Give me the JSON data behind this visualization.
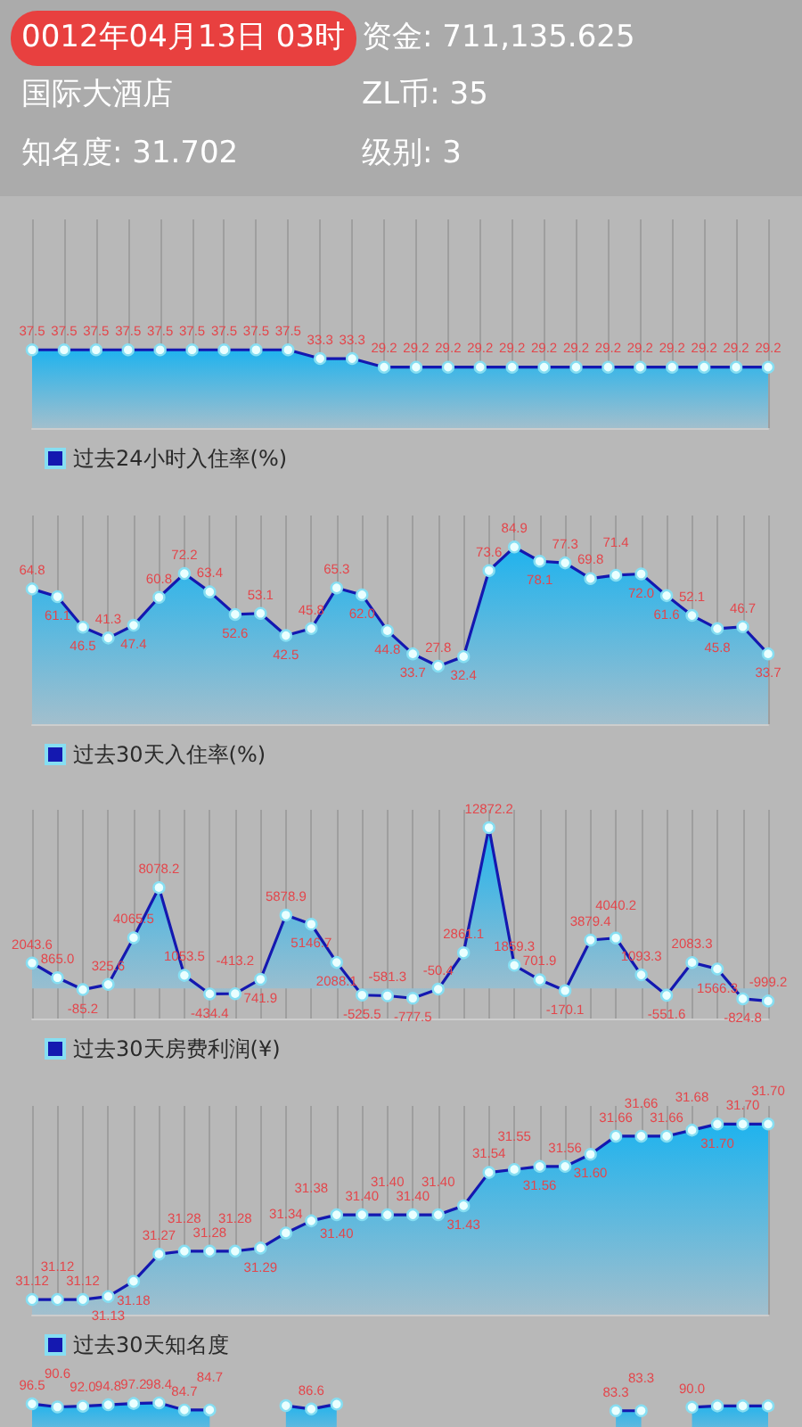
{
  "chart_data": [
    {
      "type": "other",
      "title": "0012年04月13日 03时",
      "annotations": [
        "资金: 711,135.625",
        "国际大酒店",
        "ZL币: 35",
        "知名度: 31.702",
        "级别: 3"
      ]
    },
    {
      "type": "area",
      "categories": [
        null,
        null,
        null,
        null,
        null,
        null,
        null,
        null,
        null,
        null,
        null,
        null,
        null,
        null,
        null,
        null,
        null,
        null,
        null,
        null,
        null,
        null,
        null,
        null
      ],
      "series": [
        {
          "name": "过去24小时入住率(%)",
          "color": "#1418b0",
          "values": [
            37.5,
            37.5,
            37.5,
            37.5,
            37.5,
            37.5,
            37.5,
            37.5,
            37.5,
            33.3,
            33.3,
            29.2,
            29.2,
            29.2,
            29.2,
            29.2,
            29.2,
            29.2,
            29.2,
            29.2,
            29.2,
            29.2,
            29.2,
            29.2
          ],
          "value_labels": [
            "37.5",
            "37.5",
            "37.5",
            "37.5",
            "37.5",
            "37.5",
            "37.5",
            "37.5",
            "37.5",
            "33.3",
            "33.3",
            "29.2",
            "29.2",
            "29.2",
            "29.2",
            "29.2",
            "29.2",
            "29.2",
            "29.2",
            "29.2",
            "29.2",
            "29.2",
            "29.2",
            "29.2"
          ]
        }
      ],
      "ylim": [
        0,
        100
      ],
      "grid": "x",
      "legend": "bottom left",
      "tick_labels": false,
      "marker": "circle"
    },
    {
      "type": "area",
      "categories": [
        null,
        null,
        null,
        null,
        null,
        null,
        null,
        null,
        null,
        null,
        null,
        null,
        null,
        null,
        null,
        null,
        null,
        null,
        null,
        null,
        null,
        null,
        null,
        null,
        null,
        null,
        null,
        null,
        null,
        null
      ],
      "series": [
        {
          "name": "过去30天入住率(%)",
          "color": "#1418b0",
          "values": [
            64.8,
            61.1,
            46.5,
            41.3,
            47.4,
            60.8,
            72.2,
            63.4,
            52.6,
            53.1,
            42.5,
            45.8,
            65.3,
            62.0,
            44.8,
            33.7,
            27.8,
            32.4,
            73.6,
            84.9,
            78.1,
            77.3,
            69.8,
            71.4,
            72.0,
            61.6,
            52.1,
            45.8,
            46.7,
            33.7
          ],
          "value_labels": [
            "64.8",
            "61.1",
            "46.5",
            "41.3",
            "47.4",
            "60.8",
            "72.2",
            "63.4",
            "52.6",
            "53.1",
            "42.5",
            "45.8",
            "65.3",
            "62.0",
            "44.8",
            "33.7",
            "27.8",
            "32.4",
            "73.6",
            "84.9",
            "78.1",
            "77.3",
            "69.8",
            "71.4",
            "72.0",
            "61.6",
            "52.1",
            "45.8",
            "46.7",
            "33.7"
          ]
        }
      ],
      "ylim": [
        0,
        100
      ],
      "grid": "x",
      "legend": "bottom left",
      "tick_labels": false,
      "marker": "circle"
    },
    {
      "type": "area",
      "categories": [
        null,
        null,
        null,
        null,
        null,
        null,
        null,
        null,
        null,
        null,
        null,
        null,
        null,
        null,
        null,
        null,
        null,
        null,
        null,
        null,
        null,
        null,
        null,
        null,
        null,
        null,
        null,
        null,
        null,
        null
      ],
      "series": [
        {
          "name": "过去30天房费利润(¥)",
          "color": "#1418b0",
          "values": [
            2043.6,
            865.0,
            -85.2,
            325.6,
            4065.5,
            8078.2,
            1053.5,
            -434.4,
            -413.2,
            741.9,
            5878.9,
            5146.7,
            2088.1,
            -525.5,
            -581.3,
            -777.5,
            -50.4,
            2861.1,
            12872.2,
            1859.3,
            701.9,
            -170.1,
            3879.4,
            4040.2,
            1093.3,
            -551.6,
            2083.3,
            1566.3,
            -824.8,
            -999.2
          ],
          "value_labels": [
            "2043.6",
            "865.0",
            "-85.2",
            "325.6",
            "4065.5",
            "8078.2",
            "1053.5",
            "-434.4",
            "-413.2",
            "741.9",
            "5878.9",
            "5146.7",
            "2088.1",
            "-525.5",
            "-581.3",
            "-777.5",
            "-50.4",
            "2861.1",
            "12872.2",
            "1859.3",
            "701.9",
            "-170.1",
            "3879.4",
            "4040.2",
            "1093.3",
            "-551.6",
            "2083.3",
            "1566.3",
            "-824.8",
            "-999.2"
          ]
        }
      ],
      "ylim": [
        -2400,
        14300
      ],
      "grid": "x",
      "legend": "bottom left",
      "tick_labels": false,
      "marker": "circle"
    },
    {
      "type": "area",
      "categories": [
        null,
        null,
        null,
        null,
        null,
        null,
        null,
        null,
        null,
        null,
        null,
        null,
        null,
        null,
        null,
        null,
        null,
        null,
        null,
        null,
        null,
        null,
        null,
        null,
        null,
        null,
        null,
        null,
        null,
        null
      ],
      "series": [
        {
          "name": "过去30天知名度",
          "color": "#1418b0",
          "values": [
            31.12,
            31.12,
            31.12,
            31.13,
            31.18,
            31.27,
            31.28,
            31.28,
            31.28,
            31.29,
            31.34,
            31.38,
            31.4,
            31.4,
            31.4,
            31.4,
            31.4,
            31.43,
            31.54,
            31.55,
            31.56,
            31.56,
            31.6,
            31.66,
            31.66,
            31.66,
            31.68,
            31.7,
            31.7,
            31.7
          ],
          "value_labels": [
            "31.12",
            "31.12",
            "31.12",
            "31.13",
            "31.18",
            "31.27",
            "31.28",
            "31.28",
            "31.28",
            "31.29",
            "31.34",
            "31.38",
            "31.40",
            "31.40",
            "31.40",
            "31.40",
            "31.40",
            "31.43",
            "31.54",
            "31.55",
            "31.56",
            "31.56",
            "31.60",
            "31.66",
            "31.66",
            "31.66",
            "31.68",
            "31.70",
            "31.70",
            "31.70"
          ]
        }
      ],
      "ylim": [
        31.07,
        31.76
      ],
      "grid": "x",
      "legend": "bottom left",
      "tick_labels": false,
      "marker": "circle"
    },
    {
      "type": "area",
      "categories": [
        null,
        null,
        null,
        null,
        null,
        null,
        null,
        null,
        null,
        null,
        null,
        null,
        null,
        null,
        null,
        null,
        null,
        null,
        null,
        null,
        null,
        null,
        null,
        null,
        null,
        null,
        null,
        null,
        null,
        null
      ],
      "series": [
        {
          "color": "#1418b0",
          "values": [
            96.5,
            90.6,
            92.0,
            94.8,
            97.2,
            98.4,
            84.7,
            84.7,
            null,
            null,
            93.0,
            86.6,
            96.0,
            null,
            null,
            null,
            null,
            null,
            null,
            null,
            null,
            null,
            null,
            83.3,
            83.3,
            null,
            90.0,
            92.5,
            92.5,
            92.5
          ],
          "value_labels": [
            "96.5",
            "90.6",
            "92.0",
            "94.8",
            "97.2",
            "98.4",
            "84.7",
            "84.7",
            null,
            null,
            null,
            "86.6",
            null,
            null,
            null,
            null,
            null,
            null,
            null,
            null,
            null,
            null,
            null,
            "83.3",
            "83.3",
            null,
            "90.0",
            null,
            null,
            null
          ]
        }
      ],
      "tick_labels": false,
      "marker": "circle"
    }
  ]
}
